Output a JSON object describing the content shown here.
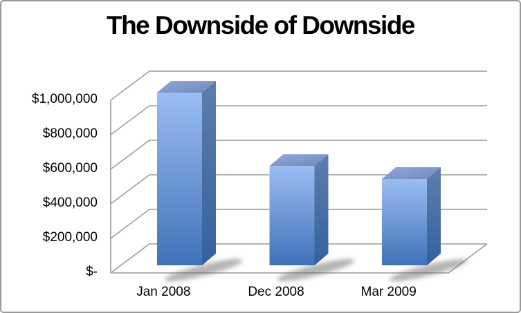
{
  "frame": {
    "background": "#ffffff",
    "border_color": "#989898"
  },
  "chart_data": {
    "type": "bar",
    "style": "3d-column",
    "title": "The Downside of Downside",
    "categories": [
      "Jan 2008",
      "Dec 2008",
      "Mar 2009"
    ],
    "values": [
      1000000,
      575000,
      500000
    ],
    "ylim": [
      0,
      1000000
    ],
    "ytick_step": 200000,
    "ytick_labels": [
      "$-",
      "$200,000",
      "$400,000",
      "$600,000",
      "$800,000",
      "$1,000,000"
    ],
    "xlabel": "",
    "ylabel": "",
    "grid": true,
    "legend": false,
    "colors": {
      "bar_front_top": "#9abdf3",
      "bar_front_bottom": "#4072b8",
      "bar_side_top": "#5f7dab",
      "bar_side_bottom": "#33619f",
      "bar_top_light": "#90abdc",
      "bar_top_dark": "#7088ba",
      "gridline": "#9c9c9c",
      "shadow": "#6b6b6b",
      "text": "#000000"
    }
  }
}
